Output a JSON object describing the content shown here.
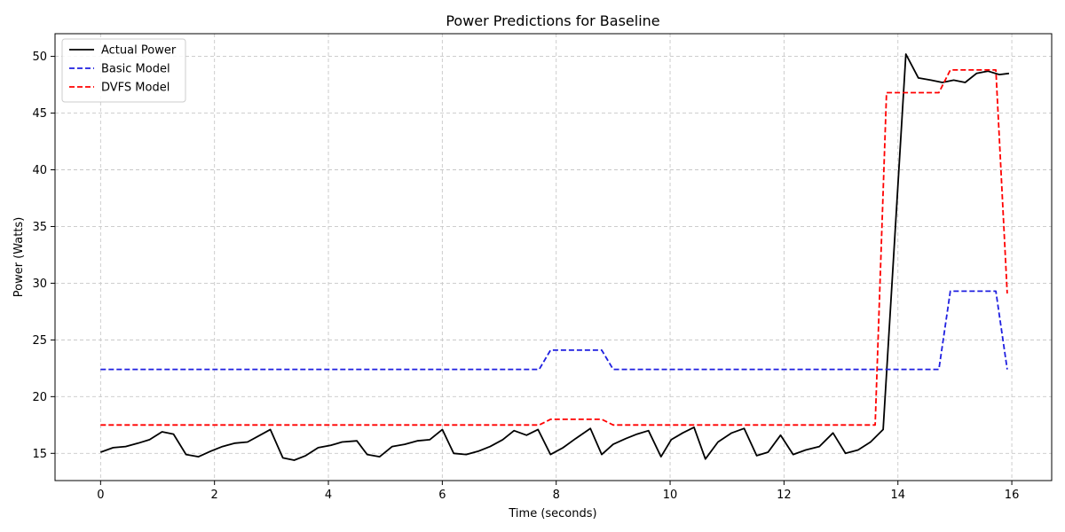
{
  "chart_data": {
    "type": "line",
    "title": "Power Predictions for Baseline",
    "xlabel": "Time (seconds)",
    "ylabel": "Power (Watts)",
    "xlim": [
      -0.8,
      16.7
    ],
    "ylim": [
      12.6,
      52.0
    ],
    "xticks": [
      0,
      2,
      4,
      6,
      8,
      10,
      12,
      14,
      16
    ],
    "yticks": [
      15,
      20,
      25,
      30,
      35,
      40,
      45,
      50
    ],
    "grid": true,
    "legend_position": "top-left",
    "series": [
      {
        "name": "Actual Power",
        "color": "#000000",
        "dash": "solid",
        "points": [
          [
            0.0,
            15.1
          ],
          [
            0.22,
            15.5
          ],
          [
            0.44,
            15.6
          ],
          [
            0.66,
            15.9
          ],
          [
            0.86,
            16.2
          ],
          [
            1.08,
            16.9
          ],
          [
            1.28,
            16.7
          ],
          [
            1.5,
            14.9
          ],
          [
            1.72,
            14.7
          ],
          [
            1.94,
            15.2
          ],
          [
            2.14,
            15.6
          ],
          [
            2.36,
            15.9
          ],
          [
            2.58,
            16.0
          ],
          [
            2.8,
            16.6
          ],
          [
            2.98,
            17.1
          ],
          [
            3.2,
            14.6
          ],
          [
            3.4,
            14.4
          ],
          [
            3.6,
            14.8
          ],
          [
            3.82,
            15.5
          ],
          [
            4.04,
            15.7
          ],
          [
            4.24,
            16.0
          ],
          [
            4.5,
            16.1
          ],
          [
            4.68,
            14.9
          ],
          [
            4.9,
            14.7
          ],
          [
            5.12,
            15.6
          ],
          [
            5.34,
            15.8
          ],
          [
            5.56,
            16.1
          ],
          [
            5.78,
            16.2
          ],
          [
            6.0,
            17.1
          ],
          [
            6.2,
            15.0
          ],
          [
            6.42,
            14.9
          ],
          [
            6.64,
            15.2
          ],
          [
            6.84,
            15.6
          ],
          [
            7.06,
            16.2
          ],
          [
            7.26,
            17.0
          ],
          [
            7.48,
            16.6
          ],
          [
            7.68,
            17.1
          ],
          [
            7.9,
            14.9
          ],
          [
            8.12,
            15.5
          ],
          [
            8.34,
            16.3
          ],
          [
            8.6,
            17.2
          ],
          [
            8.8,
            14.9
          ],
          [
            9.0,
            15.8
          ],
          [
            9.22,
            16.3
          ],
          [
            9.42,
            16.7
          ],
          [
            9.62,
            17.0
          ],
          [
            9.84,
            14.7
          ],
          [
            10.02,
            16.2
          ],
          [
            10.22,
            16.8
          ],
          [
            10.42,
            17.3
          ],
          [
            10.62,
            14.5
          ],
          [
            10.84,
            16.0
          ],
          [
            11.08,
            16.8
          ],
          [
            11.3,
            17.2
          ],
          [
            11.52,
            14.8
          ],
          [
            11.72,
            15.1
          ],
          [
            11.94,
            16.6
          ],
          [
            12.16,
            14.9
          ],
          [
            12.38,
            15.3
          ],
          [
            12.62,
            15.6
          ],
          [
            12.86,
            16.8
          ],
          [
            13.08,
            15.0
          ],
          [
            13.3,
            15.3
          ],
          [
            13.52,
            16.0
          ],
          [
            13.74,
            17.1
          ],
          [
            14.14,
            50.2
          ],
          [
            14.36,
            48.1
          ],
          [
            14.58,
            47.9
          ],
          [
            14.78,
            47.7
          ],
          [
            14.98,
            47.9
          ],
          [
            15.18,
            47.7
          ],
          [
            15.38,
            48.5
          ],
          [
            15.58,
            48.7
          ],
          [
            15.78,
            48.4
          ],
          [
            15.95,
            48.5
          ]
        ]
      },
      {
        "name": "Basic Model",
        "color": "#1f1fe0",
        "dash": "dashed",
        "points": [
          [
            0.0,
            22.4
          ],
          [
            7.7,
            22.4
          ],
          [
            7.9,
            24.1
          ],
          [
            8.8,
            24.1
          ],
          [
            9.0,
            22.4
          ],
          [
            14.72,
            22.4
          ],
          [
            14.92,
            29.3
          ],
          [
            15.72,
            29.3
          ],
          [
            15.92,
            22.4
          ]
        ]
      },
      {
        "name": "DVFS Model",
        "color": "#ff0000",
        "dash": "dashed",
        "points": [
          [
            0.0,
            17.5
          ],
          [
            7.7,
            17.5
          ],
          [
            7.9,
            18.0
          ],
          [
            8.8,
            18.0
          ],
          [
            9.0,
            17.5
          ],
          [
            13.6,
            17.5
          ],
          [
            13.8,
            46.8
          ],
          [
            14.72,
            46.8
          ],
          [
            14.92,
            48.8
          ],
          [
            15.72,
            48.8
          ],
          [
            15.92,
            29.1
          ]
        ]
      }
    ]
  }
}
